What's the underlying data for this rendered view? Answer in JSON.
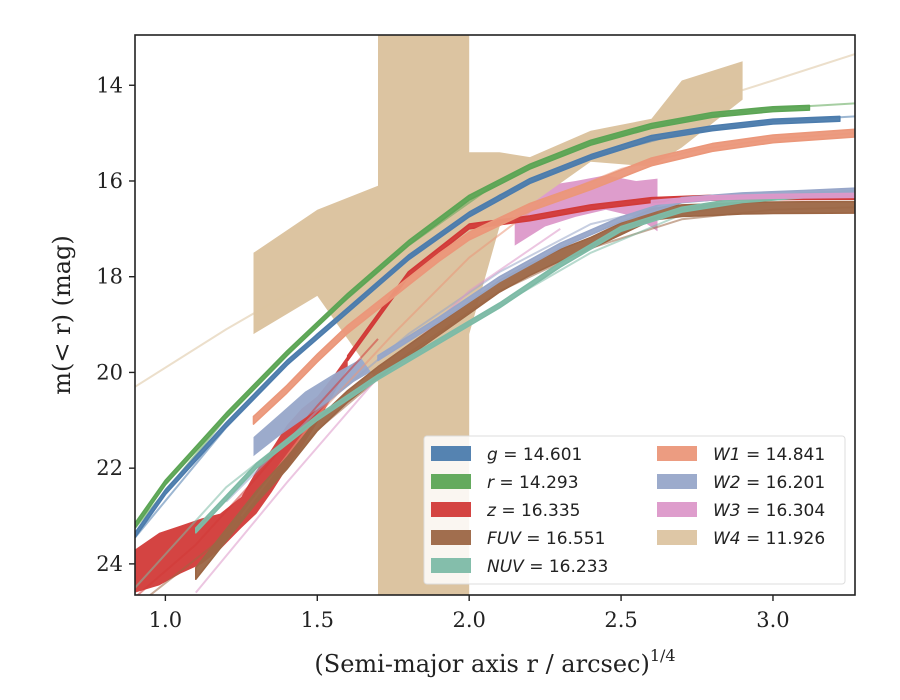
{
  "chart_data": {
    "type": "line",
    "title": "",
    "xlabel": "(Semi-major axis r / arcsec)",
    "xlabel_superscript": "1/4",
    "ylabel": "m(< r) (mag)",
    "xlim": [
      0.9,
      3.27
    ],
    "ylim": [
      24.65,
      12.95
    ],
    "y_inverted": true,
    "grid": false,
    "legend_position": "lower-right",
    "x_ticks": [
      {
        "value": 1.0,
        "label": "1.0"
      },
      {
        "value": 1.5,
        "label": "1.5"
      },
      {
        "value": 2.0,
        "label": "2.0"
      },
      {
        "value": 2.5,
        "label": "2.5"
      },
      {
        "value": 3.0,
        "label": "3.0"
      }
    ],
    "y_ticks": [
      {
        "value": 14,
        "label": "14"
      },
      {
        "value": 16,
        "label": "16"
      },
      {
        "value": 18,
        "label": "18"
      },
      {
        "value": 20,
        "label": "20"
      },
      {
        "value": 22,
        "label": "22"
      },
      {
        "value": 24,
        "label": "24"
      }
    ],
    "series": [
      {
        "name": "g = 14.601",
        "legend_var": "g",
        "legend_value": "14.601",
        "color": "#4c7cad",
        "band_half_width": 0.05,
        "x": [
          0.9,
          1.0,
          1.2,
          1.4,
          1.6,
          1.8,
          2.0,
          2.2,
          2.4,
          2.6,
          2.8,
          3.0,
          3.22
        ],
        "y": [
          23.4,
          22.5,
          21.1,
          19.8,
          18.7,
          17.6,
          16.7,
          16.0,
          15.5,
          15.1,
          14.9,
          14.76,
          14.7
        ],
        "model_x": [
          0.9,
          1.2,
          1.5,
          1.8,
          2.1,
          2.4,
          2.7,
          3.0,
          3.27
        ],
        "model_y": [
          23.45,
          21.15,
          19.2,
          17.6,
          16.3,
          15.5,
          15.0,
          14.75,
          14.65
        ]
      },
      {
        "name": "r = 14.293",
        "legend_var": "r",
        "legend_value": "14.293",
        "color": "#5ca555",
        "band_half_width": 0.05,
        "x": [
          0.9,
          1.0,
          1.2,
          1.4,
          1.6,
          1.8,
          2.0,
          2.2,
          2.4,
          2.6,
          2.8,
          3.0,
          3.12
        ],
        "y": [
          23.2,
          22.3,
          20.9,
          19.6,
          18.4,
          17.3,
          16.35,
          15.7,
          15.2,
          14.85,
          14.62,
          14.5,
          14.47
        ],
        "model_x": [
          0.9,
          1.2,
          1.5,
          1.8,
          2.1,
          2.4,
          2.7,
          3.0,
          3.27
        ],
        "model_y": [
          23.25,
          20.95,
          19.0,
          17.35,
          16.0,
          15.2,
          14.72,
          14.48,
          14.38
        ]
      },
      {
        "name": "z = 16.335",
        "legend_var": "z",
        "legend_value": "16.335",
        "color": "#d23a38",
        "band_top_x": [
          0.9,
          0.98,
          1.05,
          1.12,
          1.18,
          1.25,
          1.3,
          1.35,
          1.4,
          1.45,
          1.5,
          1.55,
          1.6
        ],
        "band_top_y": [
          23.7,
          23.35,
          23.2,
          23.05,
          22.95,
          22.6,
          22.05,
          21.6,
          21.1,
          20.75,
          20.5,
          20.1,
          19.65
        ],
        "band_bottom_x": [
          0.9,
          0.98,
          1.05,
          1.12,
          1.18,
          1.25,
          1.3,
          1.35,
          1.4,
          1.45,
          1.5,
          1.55,
          1.6
        ],
        "band_bottom_y": [
          24.6,
          24.45,
          24.2,
          24.0,
          23.7,
          23.25,
          22.95,
          22.5,
          22.0,
          21.55,
          21.05,
          20.5,
          19.9
        ],
        "x": [
          1.6,
          1.8,
          2.0,
          2.2,
          2.4,
          2.6,
          2.8,
          3.0,
          3.27
        ],
        "y": [
          19.7,
          17.95,
          16.95,
          16.78,
          16.55,
          16.4,
          16.35,
          16.34,
          16.33
        ],
        "band_half_width": 0.05,
        "model_x": [
          0.9,
          1.1,
          1.3,
          1.5,
          1.7
        ],
        "model_y": [
          24.7,
          23.6,
          22.2,
          20.7,
          19.3
        ]
      },
      {
        "name": "FUV = 16.551",
        "legend_var": "FUV",
        "legend_value": "16.551",
        "color": "#9c6644",
        "band_half_width": 0.12,
        "x": [
          1.1,
          1.2,
          1.3,
          1.4,
          1.5,
          1.6,
          1.7,
          1.8,
          1.9,
          2.0,
          2.1,
          2.2,
          2.3,
          2.4,
          2.5,
          2.6,
          2.7,
          2.8,
          2.9,
          3.0,
          3.1,
          3.27
        ],
        "y": [
          24.2,
          23.4,
          22.6,
          21.9,
          21.1,
          20.5,
          20.0,
          19.55,
          19.1,
          18.65,
          18.2,
          17.85,
          17.55,
          17.3,
          17.0,
          16.7,
          16.62,
          16.6,
          16.57,
          16.56,
          16.555,
          16.55
        ],
        "model_x": [
          0.9,
          1.2,
          1.5,
          1.8,
          2.1,
          2.4,
          2.7,
          3.0,
          3.27
        ],
        "model_y": [
          24.9,
          23.4,
          21.2,
          19.6,
          18.3,
          17.4,
          16.8,
          16.6,
          16.55
        ]
      },
      {
        "name": "NUV = 16.233",
        "legend_var": "NUV",
        "legend_value": "16.233",
        "color": "#7dbba6",
        "band_half_width": 0.05,
        "x": [
          1.1,
          1.3,
          1.5,
          1.7,
          1.9,
          2.1,
          2.3,
          2.5,
          2.7,
          2.9,
          3.1,
          3.27
        ],
        "y": [
          23.3,
          21.95,
          20.95,
          20.1,
          19.35,
          18.6,
          17.75,
          17.0,
          16.6,
          16.4,
          16.3,
          16.25
        ],
        "model_x": [
          0.9,
          1.2,
          1.5,
          1.8,
          2.1,
          2.4,
          2.7,
          3.0,
          3.27
        ],
        "model_y": [
          24.5,
          22.4,
          20.9,
          19.7,
          18.6,
          17.5,
          16.7,
          16.35,
          16.25
        ]
      },
      {
        "name": "W1 = 14.841",
        "legend_var": "W1",
        "legend_value": "14.841",
        "color": "#eb977a",
        "band_half_width": 0.08,
        "x": [
          1.29,
          1.4,
          1.5,
          1.6,
          1.7,
          1.8,
          1.9,
          2.0,
          2.2,
          2.4,
          2.6,
          2.8,
          3.0,
          3.27
        ],
        "y": [
          21.0,
          20.35,
          19.7,
          19.1,
          18.6,
          18.1,
          17.6,
          17.15,
          16.55,
          16.1,
          15.6,
          15.3,
          15.12,
          15.0
        ],
        "model_x": [
          1.25,
          1.5,
          1.75,
          2.0,
          2.25,
          2.5,
          2.75,
          3.0,
          3.27
        ],
        "model_y": [
          23.0,
          20.9,
          19.2,
          17.6,
          16.4,
          15.75,
          15.35,
          15.12,
          15.0
        ]
      },
      {
        "name": "W2 = 16.201",
        "legend_var": "W2",
        "legend_value": "16.201",
        "color": "#97a6c9",
        "band_top_x": [
          1.29,
          1.38,
          1.46,
          1.55,
          1.62,
          1.7
        ],
        "band_top_y": [
          21.35,
          20.85,
          20.4,
          20.05,
          19.8,
          19.5
        ],
        "band_bottom_x": [
          1.29,
          1.38,
          1.46,
          1.55,
          1.62,
          1.7
        ],
        "band_bottom_y": [
          21.75,
          21.3,
          20.95,
          20.55,
          20.2,
          19.9
        ],
        "x": [
          1.7,
          1.9,
          2.1,
          2.3,
          2.5,
          2.7,
          2.9,
          3.1,
          3.27
        ],
        "y": [
          19.7,
          18.9,
          18.05,
          17.35,
          16.8,
          16.4,
          16.3,
          16.25,
          16.2
        ],
        "band_half_width": 0.05,
        "model_x": [
          1.2,
          1.5,
          1.8,
          2.1,
          2.4,
          2.7,
          3.0,
          3.27
        ],
        "model_y": [
          22.7,
          20.8,
          19.2,
          17.9,
          16.9,
          16.45,
          16.28,
          16.2
        ]
      },
      {
        "name": "W3 = 16.304",
        "legend_var": "W3",
        "legend_value": "16.304",
        "color": "#dc98c9",
        "band_top_x": [
          2.15,
          2.25,
          2.35,
          2.45,
          2.55,
          2.62
        ],
        "band_top_y": [
          16.55,
          16.1,
          16.0,
          15.88,
          16.0,
          15.95
        ],
        "band_bottom_x": [
          2.15,
          2.25,
          2.35,
          2.45,
          2.55,
          2.62
        ],
        "band_bottom_y": [
          17.35,
          16.95,
          16.75,
          16.6,
          16.75,
          17.05
        ],
        "x": [
          2.6,
          2.8,
          3.0,
          3.27
        ],
        "y": [
          16.45,
          16.35,
          16.32,
          16.3
        ],
        "band_half_width": 0.04,
        "model_x": [
          1.1,
          1.4,
          1.7,
          2.0,
          2.3
        ],
        "model_y": [
          24.6,
          22.3,
          20.1,
          18.3,
          17.0
        ]
      },
      {
        "name": "W4 = 11.926",
        "legend_var": "W4",
        "legend_value": "11.926",
        "color": "#dcc4a1",
        "band_top_x": [
          1.29,
          1.5,
          1.7,
          1.7,
          2.0,
          2.0,
          2.1,
          2.2,
          2.4,
          2.6,
          2.7,
          2.9
        ],
        "band_top_y": [
          17.5,
          16.6,
          16.1,
          12.95,
          12.95,
          15.4,
          15.4,
          15.5,
          14.95,
          14.7,
          13.9,
          13.5
        ],
        "band_bottom_x": [
          1.29,
          1.5,
          1.7,
          1.7,
          2.0,
          2.0,
          2.1,
          2.2,
          2.4,
          2.6,
          2.7,
          2.9
        ],
        "band_bottom_y": [
          19.2,
          18.4,
          20.2,
          24.65,
          24.65,
          19.2,
          16.95,
          16.5,
          15.6,
          15.7,
          15.3,
          14.3
        ],
        "model_x": [
          0.9,
          1.2,
          1.5,
          1.8,
          2.1,
          2.4,
          2.7,
          3.0,
          3.27
        ],
        "model_y": [
          20.3,
          19.1,
          18.0,
          16.95,
          16.0,
          15.2,
          14.5,
          13.9,
          13.35
        ]
      }
    ]
  }
}
